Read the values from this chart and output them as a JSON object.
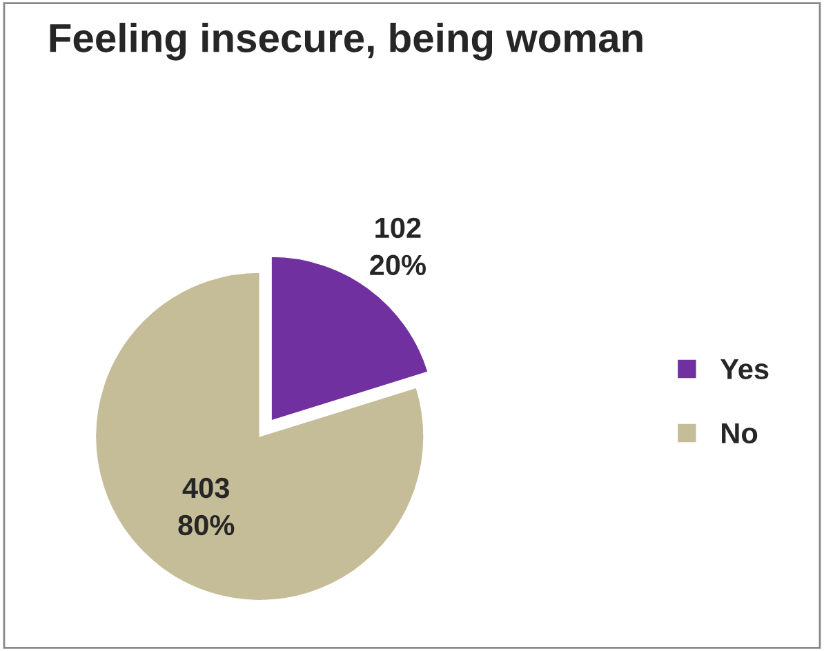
{
  "chart_data": {
    "type": "pie",
    "title": "Feeling insecure, being woman",
    "categories": [
      "Yes",
      "No"
    ],
    "values": [
      102,
      403
    ],
    "colors": [
      "#7030a0",
      "#c4bd97"
    ],
    "value_labels": [
      "102\n20%",
      "403\n80%"
    ],
    "legend": "right"
  }
}
